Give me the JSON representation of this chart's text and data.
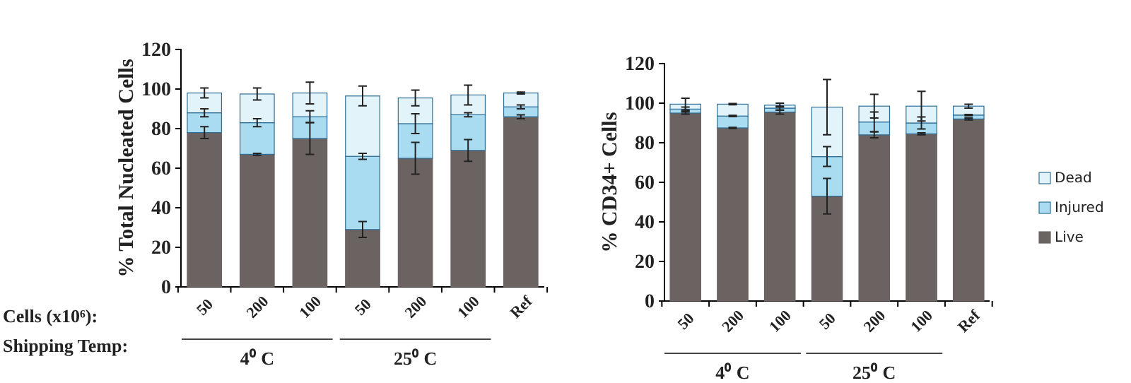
{
  "chart_data": [
    {
      "type": "bar",
      "stacked": true,
      "ylabel": "% Total Nucleated Cells",
      "xlabel": "Cells (x10⁶):",
      "categories": [
        "50",
        "200",
        "100",
        "50",
        "200",
        "100",
        "Ref"
      ],
      "ylim": [
        0,
        120
      ],
      "yticks": [
        0,
        20,
        40,
        60,
        80,
        100,
        120
      ],
      "legend": false,
      "annotations": [
        "Shipping Temp:",
        "4⁰ C",
        "25⁰ C"
      ],
      "series": [
        {
          "color": "#6b6262",
          "values": [
            78,
            67,
            75,
            29,
            65,
            69,
            86
          ],
          "errors": [
            3,
            0.5,
            8,
            4,
            8,
            5.5,
            1
          ]
        },
        {
          "color": "#a9dcf0",
          "values": [
            10,
            16,
            11,
            37,
            17.5,
            18,
            5
          ],
          "errors": [
            2,
            2,
            3,
            1.5,
            5,
            1,
            1
          ]
        },
        {
          "color": "#e3f3fa",
          "values": [
            10,
            14.5,
            12,
            30.5,
            13,
            10,
            7
          ],
          "errors": [
            2.5,
            3,
            5.5,
            5,
            4,
            5,
            0.5
          ]
        }
      ]
    },
    {
      "type": "bar",
      "stacked": true,
      "ylabel": "% CD34+ Cells",
      "categories": [
        "50",
        "200",
        "100",
        "50",
        "200",
        "100",
        "Ref"
      ],
      "ylim": [
        0,
        120
      ],
      "yticks": [
        0,
        20,
        40,
        60,
        80,
        100,
        120
      ],
      "legend": "right",
      "annotations": [
        "4⁰ C",
        "25⁰ C"
      ],
      "series": [
        {
          "name": "Live",
          "color": "#6b6262",
          "values": [
            95,
            87.5,
            95.5,
            53,
            84,
            84.5,
            92
          ],
          "errors": [
            0.5,
            0.3,
            1,
            9,
            1.5,
            0.5,
            0.5
          ]
        },
        {
          "name": "Injured",
          "color": "#a9dcf0",
          "values": [
            2,
            6,
            2,
            20,
            6.5,
            5.5,
            2
          ],
          "errors": [
            1,
            0.3,
            1,
            5,
            5,
            3,
            0.3
          ]
        },
        {
          "name": "Dead",
          "color": "#e3f3fa",
          "values": [
            2.5,
            6,
            1.5,
            25,
            8,
            8.5,
            4.5
          ],
          "errors": [
            3,
            0.3,
            1,
            14,
            6,
            7.5,
            1
          ]
        }
      ]
    }
  ]
}
